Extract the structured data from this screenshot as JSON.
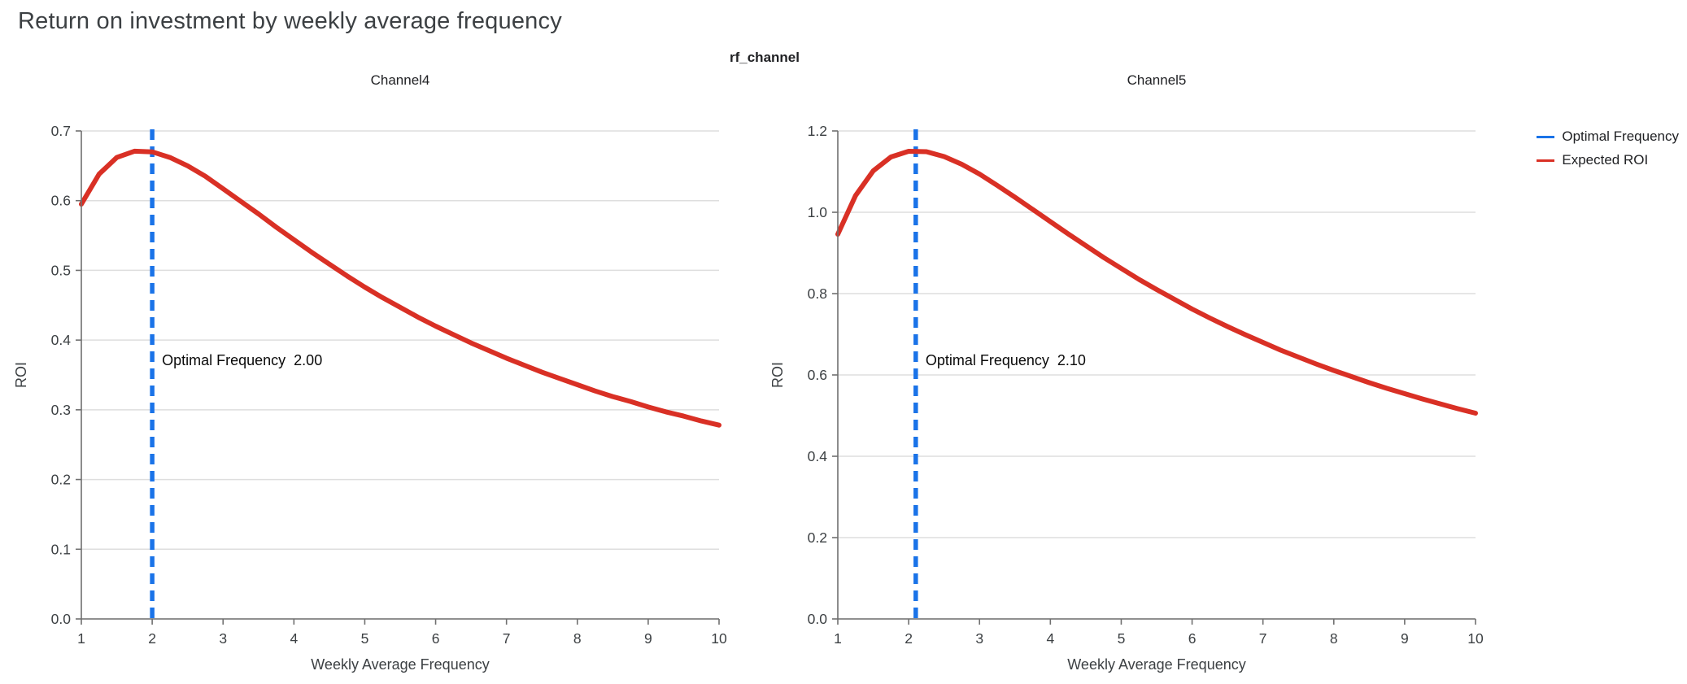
{
  "page": {
    "title": "Return on investment by weekly average frequency"
  },
  "figure": {
    "title": "rf_channel"
  },
  "legend": {
    "items": [
      {
        "label": "Optimal Frequency",
        "color": "#1a73e8"
      },
      {
        "label": "Expected ROI",
        "color": "#d93025"
      }
    ],
    "position": "top-right"
  },
  "style": {
    "curve_color": "#d93025",
    "vline_color": "#1a73e8",
    "grid_color": "#dedede",
    "spine_color": "#707070",
    "tick_text_color": "#3c4043",
    "annotation_color": "#0a0a0a"
  },
  "chart_data": [
    {
      "type": "line",
      "title": "Channel4",
      "xlabel": "Weekly Average Frequency",
      "ylabel": "ROI",
      "xlim": [
        1,
        10
      ],
      "ylim": [
        0.0,
        0.7
      ],
      "xticks": [
        1,
        2,
        3,
        4,
        5,
        6,
        7,
        8,
        9,
        10
      ],
      "xtick_labels": [
        "1",
        "2",
        "3",
        "4",
        "5",
        "6",
        "7",
        "8",
        "9",
        "10"
      ],
      "yticks": [
        0.0,
        0.1,
        0.2,
        0.3,
        0.4,
        0.5,
        0.6,
        0.7
      ],
      "ytick_labels": [
        "0.0",
        "0.1",
        "0.2",
        "0.3",
        "0.4",
        "0.5",
        "0.6",
        "0.7"
      ],
      "grid": "horizontal",
      "optimal_frequency": {
        "x": 2.0,
        "label": "Optimal Frequency",
        "value": "2.00",
        "label_y": 0.364
      },
      "series": [
        {
          "name": "Expected ROI",
          "x": [
            1,
            1.25,
            1.5,
            1.75,
            2,
            2.25,
            2.5,
            2.75,
            3,
            3.25,
            3.5,
            3.75,
            4,
            4.25,
            4.5,
            4.75,
            5,
            5.25,
            5.5,
            5.75,
            6,
            6.25,
            6.5,
            6.75,
            7,
            7.25,
            7.5,
            7.75,
            8,
            8.25,
            8.5,
            8.75,
            9,
            9.25,
            9.5,
            9.75,
            10
          ],
          "y": [
            0.595,
            0.638,
            0.662,
            0.671,
            0.67,
            0.662,
            0.65,
            0.635,
            0.617,
            0.599,
            0.581,
            0.562,
            0.544,
            0.526,
            0.509,
            0.492,
            0.476,
            0.461,
            0.447,
            0.433,
            0.42,
            0.408,
            0.396,
            0.385,
            0.374,
            0.364,
            0.354,
            0.345,
            0.336,
            0.327,
            0.319,
            0.312,
            0.304,
            0.297,
            0.291,
            0.284,
            0.278
          ]
        }
      ]
    },
    {
      "type": "line",
      "title": "Channel5",
      "xlabel": "Weekly Average Frequency",
      "ylabel": "ROI",
      "xlim": [
        1,
        10
      ],
      "ylim": [
        0.0,
        1.2
      ],
      "xticks": [
        1,
        2,
        3,
        4,
        5,
        6,
        7,
        8,
        9,
        10
      ],
      "xtick_labels": [
        "1",
        "2",
        "3",
        "4",
        "5",
        "6",
        "7",
        "8",
        "9",
        "10"
      ],
      "yticks": [
        0.0,
        0.2,
        0.4,
        0.6,
        0.8,
        1.0,
        1.2
      ],
      "ytick_labels": [
        "0.0",
        "0.2",
        "0.4",
        "0.6",
        "0.8",
        "1.0",
        "1.2"
      ],
      "grid": "horizontal",
      "optimal_frequency": {
        "x": 2.1,
        "label": "Optimal Frequency",
        "value": "2.10",
        "label_y": 0.624
      },
      "series": [
        {
          "name": "Expected ROI",
          "x": [
            1,
            1.25,
            1.5,
            1.75,
            2,
            2.25,
            2.5,
            2.75,
            3,
            3.25,
            3.5,
            3.75,
            4,
            4.25,
            4.5,
            4.75,
            5,
            5.25,
            5.5,
            5.75,
            6,
            6.25,
            6.5,
            6.75,
            7,
            7.25,
            7.5,
            7.75,
            8,
            8.25,
            8.5,
            8.75,
            9,
            9.25,
            9.5,
            9.75,
            10
          ],
          "y": [
            0.946,
            1.041,
            1.102,
            1.136,
            1.15,
            1.149,
            1.137,
            1.118,
            1.094,
            1.066,
            1.037,
            1.007,
            0.977,
            0.947,
            0.918,
            0.889,
            0.862,
            0.835,
            0.81,
            0.786,
            0.762,
            0.74,
            0.719,
            0.699,
            0.68,
            0.661,
            0.644,
            0.627,
            0.611,
            0.596,
            0.581,
            0.567,
            0.554,
            0.541,
            0.529,
            0.517,
            0.506
          ]
        }
      ]
    }
  ]
}
